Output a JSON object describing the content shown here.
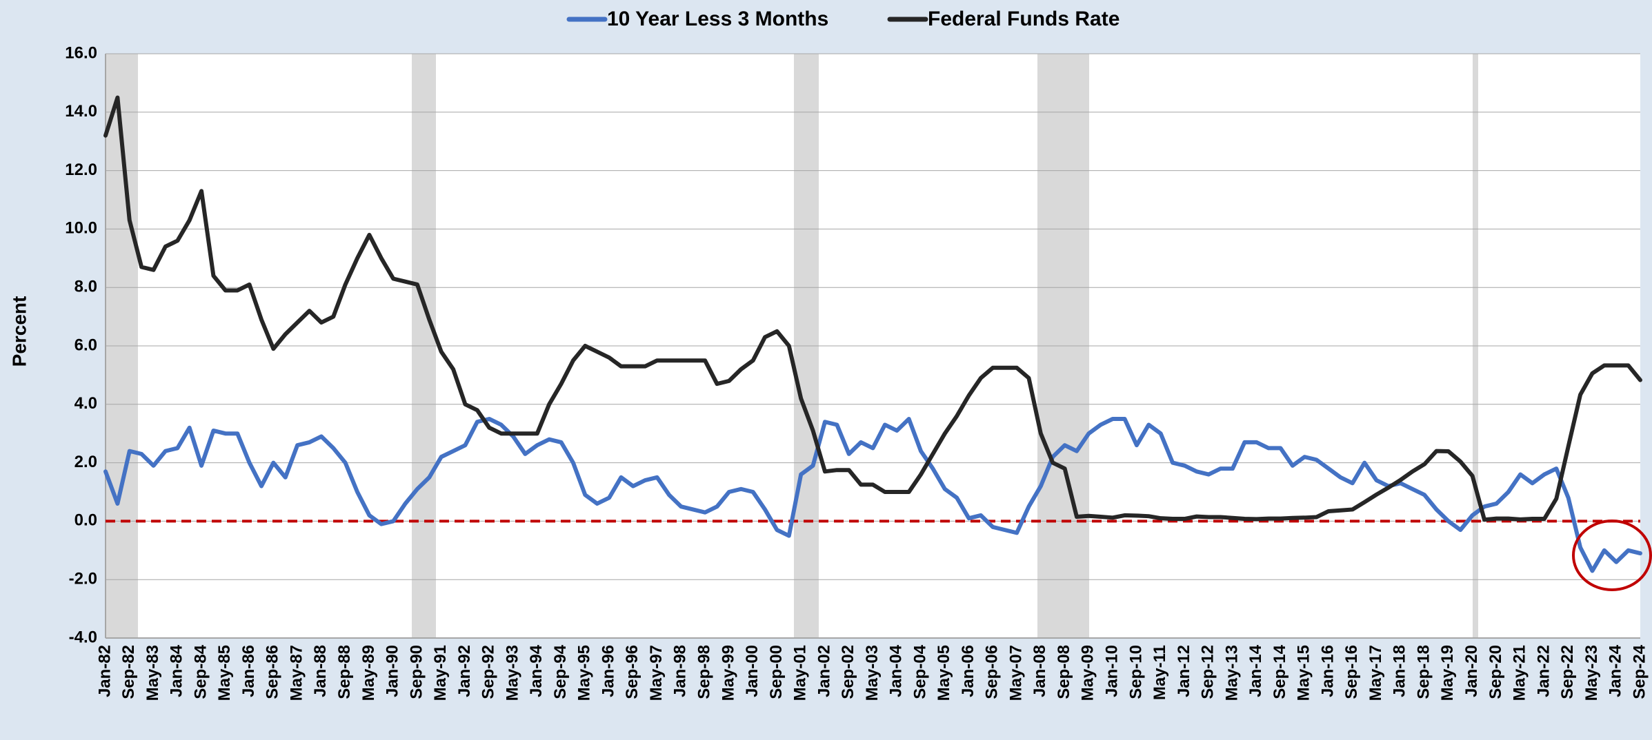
{
  "chart_data": {
    "type": "line",
    "y_label": "Percent",
    "categories": [
      "Jan-82",
      null,
      "Sep-82",
      null,
      "May-83",
      null,
      "Jan-84",
      null,
      "Sep-84",
      null,
      "May-85",
      null,
      "Jan-86",
      null,
      "Sep-86",
      null,
      "May-87",
      null,
      "Jan-88",
      null,
      "Sep-88",
      null,
      "May-89",
      null,
      "Jan-90",
      null,
      "Sep-90",
      null,
      "May-91",
      null,
      "Jan-92",
      null,
      "Sep-92",
      null,
      "May-93",
      null,
      "Jan-94",
      null,
      "Sep-94",
      null,
      "May-95",
      null,
      "Jan-96",
      null,
      "Sep-96",
      null,
      "May-97",
      null,
      "Jan-98",
      null,
      "Sep-98",
      null,
      "May-99",
      null,
      "Jan-00",
      null,
      "Sep-00",
      null,
      "May-01",
      null,
      "Jan-02",
      null,
      "Sep-02",
      null,
      "May-03",
      null,
      "Jan-04",
      null,
      "Sep-04",
      null,
      "May-05",
      null,
      "Jan-06",
      null,
      "Sep-06",
      null,
      "May-07",
      null,
      "Jan-08",
      null,
      "Sep-08",
      null,
      "May-09",
      null,
      "Jan-10",
      null,
      "Sep-10",
      null,
      "May-11",
      null,
      "Jan-12",
      null,
      "Sep-12",
      null,
      "May-13",
      null,
      "Jan-14",
      null,
      "Sep-14",
      null,
      "May-15",
      null,
      "Jan-16",
      null,
      "Sep-16",
      null,
      "May-17",
      null,
      "Jan-18",
      null,
      "Sep-18",
      null,
      "May-19",
      null,
      "Jan-20",
      null,
      "Sep-20",
      null,
      "May-21",
      null,
      "Jan-22",
      null,
      "Sep-22",
      null,
      "May-23",
      null,
      "Jan-24",
      null,
      "Sep-24"
    ],
    "series": [
      {
        "name": "10 Year Less 3 Months",
        "color": "#4472c4",
        "values": [
          1.7,
          0.6,
          2.4,
          2.3,
          1.9,
          2.4,
          2.5,
          3.2,
          1.9,
          3.1,
          3.0,
          3.0,
          2.0,
          1.2,
          2.0,
          1.5,
          2.6,
          2.7,
          2.9,
          2.5,
          2.0,
          1.0,
          0.2,
          -0.1,
          0.0,
          0.6,
          1.1,
          1.5,
          2.2,
          2.4,
          2.6,
          3.4,
          3.5,
          3.3,
          2.9,
          2.3,
          2.6,
          2.8,
          2.7,
          2.0,
          0.9,
          0.6,
          0.8,
          1.5,
          1.2,
          1.4,
          1.5,
          0.9,
          0.5,
          0.4,
          0.3,
          0.5,
          1.0,
          1.1,
          1.0,
          0.4,
          -0.3,
          -0.5,
          1.6,
          1.9,
          3.4,
          3.3,
          2.3,
          2.7,
          2.5,
          3.3,
          3.1,
          3.5,
          2.4,
          1.8,
          1.1,
          0.8,
          0.1,
          0.2,
          -0.2,
          -0.3,
          -0.4,
          0.5,
          1.2,
          2.2,
          2.6,
          2.4,
          3.0,
          3.3,
          3.5,
          3.5,
          2.6,
          3.3,
          3.0,
          2.0,
          1.9,
          1.7,
          1.6,
          1.8,
          1.8,
          2.7,
          2.7,
          2.5,
          2.5,
          1.9,
          2.2,
          2.1,
          1.8,
          1.5,
          1.3,
          2.0,
          1.4,
          1.2,
          1.3,
          1.1,
          0.9,
          0.4,
          0.0,
          -0.3,
          0.2,
          0.5,
          0.6,
          1.0,
          1.6,
          1.3,
          1.6,
          1.8,
          0.8,
          -0.9,
          -1.7,
          -1.0,
          -1.4,
          -1.0,
          -1.1
        ]
      },
      {
        "name": "Federal Funds Rate",
        "color": "#262626",
        "values": [
          13.2,
          14.5,
          10.3,
          8.7,
          8.6,
          9.4,
          9.6,
          10.3,
          11.3,
          8.4,
          7.9,
          7.9,
          8.1,
          6.9,
          5.9,
          6.4,
          6.8,
          7.2,
          6.8,
          7.0,
          8.1,
          9.0,
          9.8,
          9.0,
          8.3,
          8.2,
          8.1,
          6.9,
          5.8,
          5.2,
          4.0,
          3.8,
          3.2,
          3.0,
          3.0,
          3.0,
          3.0,
          4.0,
          4.7,
          5.5,
          6.0,
          5.8,
          5.6,
          5.3,
          5.3,
          5.3,
          5.5,
          5.5,
          5.5,
          5.5,
          5.5,
          4.7,
          4.8,
          5.2,
          5.5,
          6.3,
          6.5,
          6.0,
          4.2,
          3.1,
          1.7,
          1.75,
          1.75,
          1.25,
          1.25,
          1.0,
          1.0,
          1.0,
          1.6,
          2.3,
          3.0,
          3.6,
          4.3,
          4.9,
          5.25,
          5.25,
          5.25,
          4.9,
          3.0,
          2.0,
          1.8,
          0.15,
          0.18,
          0.15,
          0.12,
          0.2,
          0.19,
          0.17,
          0.1,
          0.08,
          0.08,
          0.16,
          0.14,
          0.14,
          0.11,
          0.08,
          0.07,
          0.09,
          0.09,
          0.11,
          0.12,
          0.14,
          0.34,
          0.37,
          0.4,
          0.65,
          0.91,
          1.15,
          1.41,
          1.7,
          1.95,
          2.4,
          2.39,
          2.04,
          1.55,
          0.05,
          0.09,
          0.09,
          0.06,
          0.08,
          0.08,
          0.77,
          2.56,
          4.33,
          5.06,
          5.33,
          5.33,
          5.33,
          4.83
        ]
      }
    ],
    "ylim": [
      -4,
      16
    ],
    "yticks": [
      {
        "value": -4,
        "label": "-4.0"
      },
      {
        "value": -2,
        "label": "-2.0"
      },
      {
        "value": 0,
        "label": "0.0"
      },
      {
        "value": 2,
        "label": "2.0"
      },
      {
        "value": 4,
        "label": "4.0"
      },
      {
        "value": 6,
        "label": "6.0"
      },
      {
        "value": 8,
        "label": "8.0"
      },
      {
        "value": 10,
        "label": "10.0"
      },
      {
        "value": 12,
        "label": "12.0"
      },
      {
        "value": 14,
        "label": "14.0"
      },
      {
        "value": 16,
        "label": "16.0"
      }
    ],
    "grid": true,
    "legend": "top"
  }
}
